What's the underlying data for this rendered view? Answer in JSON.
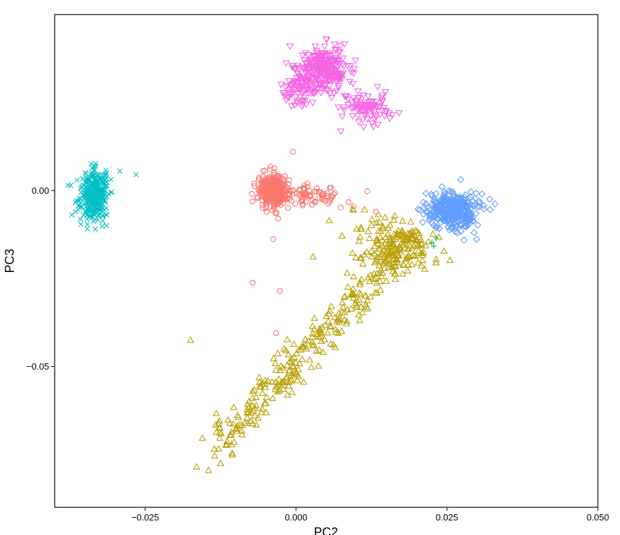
{
  "chart_data": {
    "type": "scatter",
    "title": "",
    "xlabel": "PC2",
    "ylabel": "PC3",
    "xlim": [
      -0.04,
      0.05
    ],
    "ylim": [
      -0.09,
      0.05
    ],
    "x_ticks": [
      -0.025,
      0.0,
      0.025,
      0.05
    ],
    "x_tick_labels": [
      "−0.025",
      "0.000",
      "0.025",
      "0.050"
    ],
    "y_ticks": [
      0.0,
      -0.05
    ],
    "y_tick_labels": [
      "0.00",
      "−0.05"
    ],
    "grid": false,
    "legend": "none",
    "series": [
      {
        "marker": "circle",
        "color": "#F8766D",
        "clusters": [
          {
            "center": [
              -0.004,
              0.0
            ],
            "spread": [
              0.0011,
              0.0022
            ],
            "count": 320
          },
          {
            "center": [
              0.0008,
              -0.0012
            ],
            "spread": [
              0.0026,
              0.0014
            ],
            "count": 60
          },
          {
            "center": [
              0.0045,
              -0.0022
            ],
            "spread": [
              0.0018,
              0.0012
            ],
            "count": 22
          }
        ],
        "points": [
          [
            -0.0005,
            0.011
          ],
          [
            0.0118,
            -0.0002
          ],
          [
            0.0132,
            -0.006
          ],
          [
            -0.0038,
            -0.0138
          ],
          [
            -0.0072,
            -0.0262
          ],
          [
            -0.0027,
            -0.0285
          ],
          [
            -0.0033,
            -0.0405
          ],
          [
            0.0095,
            -0.0045
          ],
          [
            0.0074,
            -0.0048
          ],
          [
            0.0053,
            -0.0038
          ],
          [
            0.0087,
            -0.0033
          ]
        ]
      },
      {
        "marker": "triangle-up",
        "color": "#B79F00",
        "clusters": [
          {
            "center": [
              0.0155,
              -0.0175
            ],
            "spread": [
              0.0026,
              0.0038
            ],
            "count": 160
          },
          {
            "center": [
              0.0195,
              -0.014
            ],
            "spread": [
              0.0018,
              0.003
            ],
            "count": 45
          }
        ],
        "band": {
          "from": [
            -0.0135,
            -0.0725
          ],
          "to": [
            0.0125,
            -0.027
          ],
          "spread": [
            0.0012,
            0.0032
          ],
          "count": 240
        },
        "points": [
          [
            -0.0175,
            -0.0425
          ],
          [
            -0.0165,
            -0.0785
          ],
          [
            -0.0145,
            -0.0795
          ],
          [
            -0.0125,
            -0.0775
          ],
          [
            0.0055,
            -0.0085
          ],
          [
            0.0095,
            -0.0055
          ],
          [
            0.0108,
            -0.011
          ],
          [
            0.0138,
            -0.009
          ],
          [
            0.0232,
            -0.0205
          ],
          [
            0.0255,
            -0.0198
          ],
          [
            0.0245,
            -0.0172
          ],
          [
            0.0028,
            -0.0188
          ],
          [
            -0.002,
            -0.045
          ],
          [
            0.0065,
            -0.0445
          ],
          [
            -0.0103,
            -0.0715
          ]
        ]
      },
      {
        "marker": "plus",
        "color": "#00BA38",
        "clusters": [],
        "points": [
          [
            0.0228,
            -0.0158
          ],
          [
            0.0225,
            -0.0148
          ],
          [
            0.0232,
            -0.0135
          ],
          [
            0.0272,
            -0.0015
          ]
        ]
      },
      {
        "marker": "x",
        "color": "#00BFC4",
        "clusters": [
          {
            "center": [
              -0.0335,
              -0.0015
            ],
            "spread": [
              0.0011,
              0.0035
            ],
            "count": 330
          }
        ],
        "points": [
          [
            -0.0378,
            0.0015
          ],
          [
            -0.0292,
            0.0055
          ],
          [
            -0.0265,
            0.0045
          ],
          [
            -0.0315,
            0.0058
          ]
        ]
      },
      {
        "marker": "diamond",
        "color": "#619CFF",
        "clusters": [
          {
            "center": [
              0.0258,
              -0.0055
            ],
            "spread": [
              0.0021,
              0.0025
            ],
            "count": 360
          }
        ],
        "points": [
          [
            0.0205,
            -0.0055
          ],
          [
            0.0308,
            -0.001
          ],
          [
            0.021,
            -0.009
          ],
          [
            0.0295,
            -0.012
          ]
        ]
      },
      {
        "marker": "triangle-down",
        "color": "#F564E3",
        "clusters": [
          {
            "center": [
              0.0045,
              0.0345
            ],
            "spread": [
              0.0022,
              0.0033
            ],
            "count": 260
          },
          {
            "center": [
              0.0005,
              0.0295
            ],
            "spread": [
              0.0013,
              0.0025
            ],
            "count": 80
          },
          {
            "center": [
              0.0115,
              0.0235
            ],
            "spread": [
              0.0018,
              0.0022
            ],
            "count": 90
          }
        ],
        "points": [
          [
            0.0135,
            0.0295
          ],
          [
            0.0148,
            0.028
          ],
          [
            0.0155,
            0.0205
          ],
          [
            0.016,
            0.0215
          ],
          [
            0.0128,
            0.0182
          ],
          [
            0.005,
            0.043
          ],
          [
            -0.001,
            0.041
          ]
        ]
      }
    ]
  }
}
